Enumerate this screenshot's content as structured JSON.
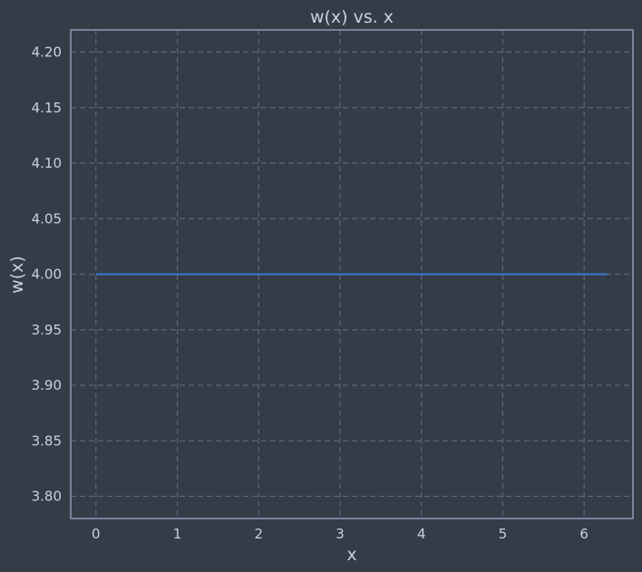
{
  "chart_data": {
    "type": "line",
    "title": "w(x) vs. x",
    "xlabel": "x",
    "ylabel": "w(x)",
    "xlim": [
      -0.31,
      6.6
    ],
    "ylim": [
      3.78,
      4.22
    ],
    "xticks": [
      0,
      1,
      2,
      3,
      4,
      5,
      6
    ],
    "xtick_labels": [
      "0",
      "1",
      "2",
      "3",
      "4",
      "5",
      "6"
    ],
    "yticks": [
      3.8,
      3.85,
      3.9,
      3.95,
      4.0,
      4.05,
      4.1,
      4.15,
      4.2
    ],
    "ytick_labels": [
      "3.80",
      "3.85",
      "3.90",
      "3.95",
      "4.00",
      "4.05",
      "4.10",
      "4.15",
      "4.20"
    ],
    "grid": true,
    "series": [
      {
        "x": [
          0,
          6.283
        ],
        "y": [
          4.0,
          4.0
        ],
        "color": "#3a78d4"
      }
    ]
  },
  "colors": {
    "background": "#343c48",
    "grid": "#5b6678",
    "frame": "#8c9bb6",
    "text": "#c9d1de"
  }
}
